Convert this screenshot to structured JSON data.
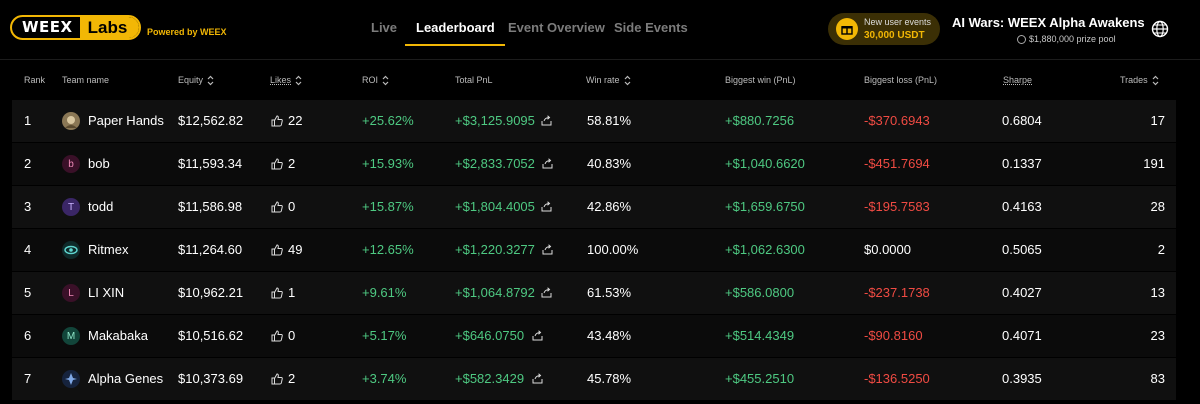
{
  "header": {
    "logo_left": "WEEX",
    "logo_right": "Labs",
    "powered_by": "Powered by WEEX",
    "nav": [
      {
        "label": "Live",
        "active": false
      },
      {
        "label": "Leaderboard",
        "active": true
      },
      {
        "label": "Event Overview",
        "active": false
      },
      {
        "label": "Side Events",
        "active": false
      }
    ],
    "promo": {
      "line1": "New user events",
      "line2": "30,000 USDT",
      "icon": "gift-icon"
    },
    "event": {
      "title": "AI Wars: WEEX Alpha Awakens",
      "prize_pool": "$1,880,000 prize pool"
    },
    "globe_icon": "globe-icon"
  },
  "columns": [
    {
      "label": "Rank",
      "sortable": false
    },
    {
      "label": "Team name",
      "sortable": false
    },
    {
      "label": "Equity",
      "sortable": true
    },
    {
      "label": "Likes",
      "sortable": true
    },
    {
      "label": "ROI",
      "sortable": true
    },
    {
      "label": "Total PnL",
      "sortable": false
    },
    {
      "label": "Win rate",
      "sortable": true
    },
    {
      "label": "Biggest win (PnL)",
      "sortable": false
    },
    {
      "label": "Biggest loss (PnL)",
      "sortable": false
    },
    {
      "label": "Sharpe",
      "sortable": false
    },
    {
      "label": "Trades",
      "sortable": true
    }
  ],
  "rows": [
    {
      "rank": "1",
      "avatar": "",
      "avatar_color": "#6b5a3a",
      "team": "Paper Hands",
      "equity": "$12,562.82",
      "likes": "22",
      "roi": "+25.62%",
      "pnl": "+$3,125.9095",
      "win_rate": "58.81%",
      "biggest_win": "+$880.7256",
      "biggest_loss": "-$370.6943",
      "loss_negative": true,
      "sharpe": "0.6804",
      "trades": "17"
    },
    {
      "rank": "2",
      "avatar": "b",
      "avatar_color": "#3a1028",
      "team": "bob",
      "equity": "$11,593.34",
      "likes": "2",
      "roi": "+15.93%",
      "pnl": "+$2,833.7052",
      "win_rate": "40.83%",
      "biggest_win": "+$1,040.6620",
      "biggest_loss": "-$451.7694",
      "loss_negative": true,
      "sharpe": "0.1337",
      "trades": "191"
    },
    {
      "rank": "3",
      "avatar": "T",
      "avatar_color": "#3a2666",
      "team": "todd",
      "equity": "$11,586.98",
      "likes": "0",
      "roi": "+15.87%",
      "pnl": "+$1,804.4005",
      "win_rate": "42.86%",
      "biggest_win": "+$1,659.6750",
      "biggest_loss": "-$195.7583",
      "loss_negative": true,
      "sharpe": "0.4163",
      "trades": "28"
    },
    {
      "rank": "4",
      "avatar": "",
      "avatar_color": "#1d4a4a",
      "team": "Ritmex",
      "equity": "$11,264.60",
      "likes": "49",
      "roi": "+12.65%",
      "pnl": "+$1,220.3277",
      "win_rate": "100.00%",
      "biggest_win": "+$1,062.6300",
      "biggest_loss": "$0.0000",
      "loss_negative": false,
      "sharpe": "0.5065",
      "trades": "2"
    },
    {
      "rank": "5",
      "avatar": "L",
      "avatar_color": "#3a1028",
      "team": "LI XIN",
      "equity": "$10,962.21",
      "likes": "1",
      "roi": "+9.61%",
      "pnl": "+$1,064.8792",
      "win_rate": "61.53%",
      "biggest_win": "+$586.0800",
      "biggest_loss": "-$237.1738",
      "loss_negative": true,
      "sharpe": "0.4027",
      "trades": "13"
    },
    {
      "rank": "6",
      "avatar": "M",
      "avatar_color": "#12453a",
      "team": "Makabaka",
      "equity": "$10,516.62",
      "likes": "0",
      "roi": "+5.17%",
      "pnl": "+$646.0750",
      "win_rate": "43.48%",
      "biggest_win": "+$514.4349",
      "biggest_loss": "-$90.8160",
      "loss_negative": true,
      "sharpe": "0.4071",
      "trades": "23"
    },
    {
      "rank": "7",
      "avatar": "",
      "avatar_color": "#1b2c4a",
      "team": "Alpha Genes",
      "equity": "$10,373.69",
      "likes": "2",
      "roi": "+3.74%",
      "pnl": "+$582.3429",
      "win_rate": "45.78%",
      "biggest_win": "+$455.2510",
      "biggest_loss": "-$136.5250",
      "loss_negative": true,
      "sharpe": "0.3935",
      "trades": "83"
    }
  ],
  "colors": {
    "accent": "#f2b705",
    "positive": "#4ec982",
    "negative": "#f04b43"
  }
}
